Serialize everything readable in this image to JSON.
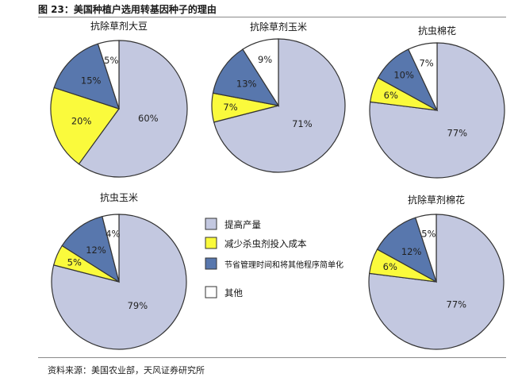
{
  "figure_title": "图 23：美国种植户选用转基因种子的理由",
  "source": "资料来源：美国农业部，天风证券研究所",
  "legend": [
    {
      "label": "提高产量",
      "color": "#c3c8e0"
    },
    {
      "label": "减少杀虫剂投入成本",
      "color": "#fafa3c"
    },
    {
      "label": "节省管理时间和将其他程序简单化",
      "color": "#5877ad"
    },
    {
      "label": "其他",
      "color": "#ffffff"
    }
  ],
  "chart_data": [
    {
      "type": "pie",
      "title": "抗除草剂大豆",
      "slices": [
        {
          "label": "提高产量",
          "value": 60,
          "text": "60%"
        },
        {
          "label": "减少杀虫剂投入成本",
          "value": 20,
          "text": "20%"
        },
        {
          "label": "节省管理时间和将其他程序简单化",
          "value": 15,
          "text": "15%"
        },
        {
          "label": "其他",
          "value": 5,
          "text": "5%"
        }
      ]
    },
    {
      "type": "pie",
      "title": "抗除草剂玉米",
      "slices": [
        {
          "label": "提高产量",
          "value": 71,
          "text": "71%"
        },
        {
          "label": "减少杀虫剂投入成本",
          "value": 7,
          "text": "7%"
        },
        {
          "label": "节省管理时间和将其他程序简单化",
          "value": 13,
          "text": "13%"
        },
        {
          "label": "其他",
          "value": 9,
          "text": "9%"
        }
      ]
    },
    {
      "type": "pie",
      "title": "抗虫棉花",
      "slices": [
        {
          "label": "提高产量",
          "value": 77,
          "text": "77%"
        },
        {
          "label": "减少杀虫剂投入成本",
          "value": 6,
          "text": "6%"
        },
        {
          "label": "节省管理时间和将其他程序简单化",
          "value": 10,
          "text": "10%"
        },
        {
          "label": "其他",
          "value": 7,
          "text": "7%"
        }
      ]
    },
    {
      "type": "pie",
      "title": "抗虫玉米",
      "slices": [
        {
          "label": "提高产量",
          "value": 79,
          "text": "79%"
        },
        {
          "label": "减少杀虫剂投入成本",
          "value": 5,
          "text": "5%"
        },
        {
          "label": "节省管理时间和将其他程序简单化",
          "value": 12,
          "text": "12%"
        },
        {
          "label": "其他",
          "value": 4,
          "text": "4%"
        }
      ]
    },
    {
      "type": "pie",
      "title": "抗除草剂棉花",
      "slices": [
        {
          "label": "提高产量",
          "value": 77,
          "text": "77%"
        },
        {
          "label": "减少杀虫剂投入成本",
          "value": 6,
          "text": "6%"
        },
        {
          "label": "节省管理时间和将其他程序简单化",
          "value": 12,
          "text": "12%"
        },
        {
          "label": "其他",
          "value": 5,
          "text": "5%"
        }
      ]
    }
  ]
}
